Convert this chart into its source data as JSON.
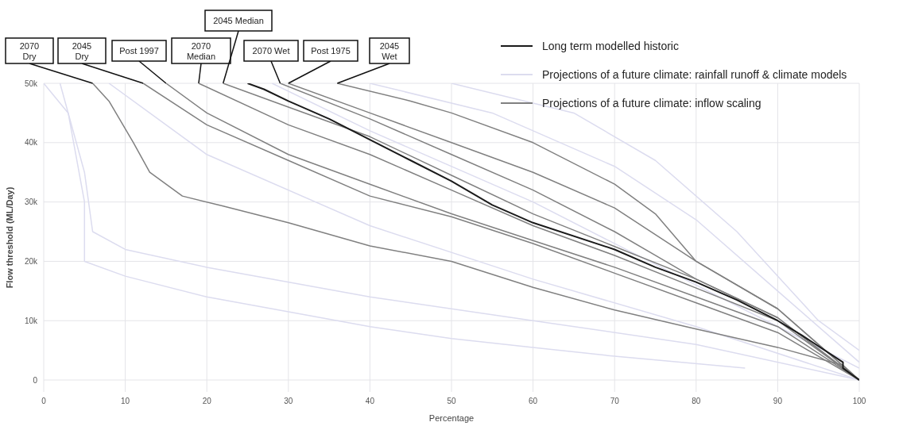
{
  "chart_data": {
    "type": "line",
    "xlabel": "Percentage",
    "ylabel": "Flow threshold (ML/Day)",
    "xlim": [
      0,
      100
    ],
    "xticks": [
      0,
      10,
      20,
      30,
      40,
      50,
      60,
      70,
      80,
      90,
      100
    ],
    "ylim": [
      -2000,
      50000
    ],
    "yticks": [
      0,
      {
        "value": 10000,
        "label": "10k"
      },
      {
        "value": 20000,
        "label": "20k"
      },
      {
        "value": 30000,
        "label": "30k"
      },
      {
        "value": 40000,
        "label": "40k"
      },
      {
        "value": 50000,
        "label": "50k"
      }
    ],
    "grid": true,
    "legend": "top right",
    "marker": "none",
    "line_style": "solid",
    "series": [
      {
        "name": "Long term modelled historic",
        "color": "#1a1a1a",
        "x": [
          25,
          27,
          30,
          35,
          40,
          45,
          50,
          55,
          60,
          70,
          75,
          80,
          85,
          90,
          93,
          98,
          98,
          100
        ],
        "values": [
          50000,
          49000,
          47000,
          44000,
          40500,
          37000,
          33500,
          29500,
          26500,
          22000,
          19000,
          16500,
          13500,
          10000,
          7500,
          3000,
          2000,
          0
        ]
      },
      {
        "name": "Projections of a future climate: rainfall runoff & climate models",
        "color": "#dcdcef",
        "x": [
          0,
          3,
          5,
          5,
          10,
          20,
          30,
          40,
          50,
          60,
          70,
          86
        ],
        "values": [
          50000,
          45000,
          30000,
          20000,
          17500,
          14000,
          11500,
          9000,
          7000,
          5500,
          4000,
          2000
        ]
      },
      {
        "color": "#dcdcef",
        "x": [
          2,
          5,
          6,
          10,
          20,
          40,
          60,
          80,
          100
        ],
        "values": [
          50000,
          35000,
          25000,
          22000,
          19000,
          14000,
          10000,
          6000,
          0
        ]
      },
      {
        "color": "#dcdcef",
        "x": [
          8,
          20,
          40,
          60,
          80,
          100
        ],
        "values": [
          50000,
          38000,
          26000,
          17000,
          9000,
          0
        ]
      },
      {
        "color": "#dcdcef",
        "x": [
          28,
          40,
          60,
          80,
          100
        ],
        "values": [
          50000,
          42000,
          30000,
          16000,
          2000
        ]
      },
      {
        "color": "#dcdcef",
        "x": [
          40,
          55,
          70,
          80,
          90,
          100
        ],
        "values": [
          50000,
          45000,
          36000,
          27000,
          15000,
          3000
        ]
      },
      {
        "color": "#dcdcef",
        "x": [
          50,
          65,
          75,
          85,
          95,
          100
        ],
        "values": [
          50000,
          45000,
          37000,
          25000,
          10000,
          5000
        ]
      },
      {
        "name": "Projections of a future climate: inflow scaling",
        "color": "#808080",
        "x": [
          6,
          8,
          11,
          13,
          17,
          22,
          30,
          40,
          50,
          60,
          70,
          80,
          90,
          98,
          100
        ],
        "values": [
          50000,
          47000,
          40000,
          35000,
          31000,
          29300,
          26500,
          22600,
          20000,
          15600,
          11800,
          8600,
          5500,
          2500,
          0
        ]
      },
      {
        "color": "#808080",
        "x": [
          12.2,
          20,
          30,
          40,
          50,
          60,
          70,
          80,
          90,
          100
        ],
        "values": [
          50000,
          43000,
          37000,
          31000,
          27500,
          23000,
          18000,
          13000,
          8000,
          0
        ]
      },
      {
        "color": "#808080",
        "x": [
          15,
          20,
          30,
          40,
          50,
          60,
          70,
          80,
          90,
          100
        ],
        "values": [
          50000,
          45000,
          38000,
          33000,
          28000,
          23500,
          19000,
          14000,
          9000,
          0
        ]
      },
      {
        "color": "#808080",
        "x": [
          19,
          30,
          40,
          50,
          60,
          70,
          80,
          90,
          100
        ],
        "values": [
          50000,
          43000,
          38000,
          32000,
          26000,
          21000,
          15500,
          10000,
          0
        ]
      },
      {
        "color": "#808080",
        "x": [
          22,
          30,
          40,
          50,
          60,
          70,
          80,
          90,
          100
        ],
        "values": [
          50000,
          46000,
          41000,
          34500,
          28000,
          22500,
          17000,
          10500,
          0
        ]
      },
      {
        "color": "#808080",
        "x": [
          29,
          40,
          50,
          60,
          70,
          75,
          80,
          90,
          98,
          100
        ],
        "values": [
          50000,
          44000,
          38000,
          32000,
          25000,
          21000,
          17000,
          10500,
          2000,
          0
        ]
      },
      {
        "color": "#808080",
        "x": [
          30,
          40,
          50,
          60,
          70,
          80,
          90,
          100
        ],
        "values": [
          50000,
          45000,
          40000,
          35000,
          29000,
          20000,
          12000,
          0
        ]
      },
      {
        "color": "#808080",
        "x": [
          36,
          45,
          50,
          60,
          70,
          75,
          80,
          90,
          100
        ],
        "values": [
          50000,
          47000,
          45000,
          40000,
          33000,
          28000,
          20000,
          12000,
          0
        ]
      }
    ],
    "annotations": [
      {
        "text": "2070 Dry",
        "x": 6,
        "y": 50000
      },
      {
        "text": "2045 Dry",
        "x": 12.2,
        "y": 50000
      },
      {
        "text": "Post 1997",
        "x": 15,
        "y": 50000
      },
      {
        "text": "2070 Median",
        "x": 19,
        "y": 50000
      },
      {
        "text": "2045 Median",
        "x": 22,
        "y": 50000
      },
      {
        "text": "2070 Wet",
        "x": 29,
        "y": 50000
      },
      {
        "text": "Post 1975",
        "x": 30,
        "y": 50000
      },
      {
        "text": "2045 Wet",
        "x": 36,
        "y": 50000
      }
    ]
  }
}
